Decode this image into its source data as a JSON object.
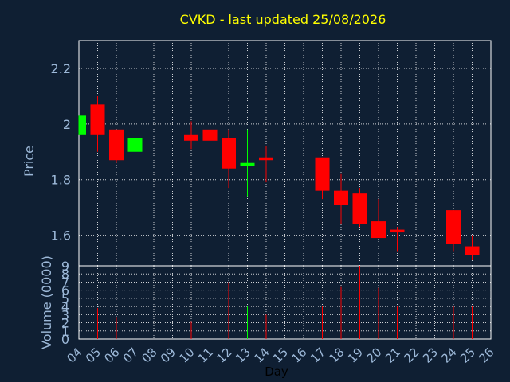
{
  "chart_data": {
    "type": "candlestick",
    "title": "CVKD - last updated 25/08/2026",
    "xlabel": "Day",
    "price_panel": {
      "ylabel": "Price",
      "ylim": [
        1.49,
        2.3
      ],
      "yticks": [
        "1.6",
        "1.8",
        "2",
        "2.2"
      ],
      "yticks_values": [
        1.6,
        1.8,
        2.0,
        2.2
      ]
    },
    "volume_panel": {
      "ylabel": "Volume (0000)",
      "ylim": [
        0,
        9
      ],
      "yticks": [
        "0",
        "1",
        "2",
        "3",
        "4",
        "5",
        "6",
        "7",
        "8",
        "9"
      ],
      "yticks_values": [
        0,
        1,
        2,
        3,
        4,
        5,
        6,
        7,
        8,
        9
      ]
    },
    "x_ticks": [
      "04",
      "05",
      "06",
      "07",
      "08",
      "09",
      "10",
      "11",
      "12",
      "13",
      "14",
      "15",
      "16",
      "17",
      "18",
      "19",
      "20",
      "21",
      "22",
      "23",
      "24",
      "25",
      "26"
    ],
    "x_range": [
      4,
      26
    ],
    "grid": true,
    "colors": {
      "up": "#00ff00",
      "down": "#ff0000",
      "background": "#0f1f33",
      "axis_text": "#9db9d9",
      "title": "#ffff00",
      "grid": "#ffffff"
    },
    "candles": [
      {
        "day": 4,
        "open": 1.96,
        "high": 2.03,
        "low": 1.96,
        "close": 2.03,
        "volume": 0
      },
      {
        "day": 5,
        "open": 2.07,
        "high": 2.1,
        "low": 1.9,
        "close": 1.96,
        "volume": 3.8
      },
      {
        "day": 6,
        "open": 1.98,
        "high": 1.98,
        "low": 1.86,
        "close": 1.87,
        "volume": 2.7
      },
      {
        "day": 7,
        "open": 1.9,
        "high": 2.05,
        "low": 1.87,
        "close": 1.95,
        "volume": 3.5
      },
      {
        "day": 10,
        "open": 1.96,
        "high": 2.01,
        "low": 1.91,
        "close": 1.94,
        "volume": 2.2
      },
      {
        "day": 11,
        "open": 1.98,
        "high": 2.12,
        "low": 1.94,
        "close": 1.94,
        "volume": 5.0
      },
      {
        "day": 12,
        "open": 1.95,
        "high": 1.98,
        "low": 1.77,
        "close": 1.84,
        "volume": 7.0
      },
      {
        "day": 13,
        "open": 1.85,
        "high": 1.98,
        "low": 1.74,
        "close": 1.86,
        "volume": 4.0
      },
      {
        "day": 14,
        "open": 1.88,
        "high": 1.92,
        "low": 1.79,
        "close": 1.87,
        "volume": 3.0
      },
      {
        "day": 17,
        "open": 1.88,
        "high": 1.88,
        "low": 1.73,
        "close": 1.76,
        "volume": 4.0
      },
      {
        "day": 18,
        "open": 1.76,
        "high": 1.82,
        "low": 1.64,
        "close": 1.71,
        "volume": 6.4
      },
      {
        "day": 19,
        "open": 1.75,
        "high": 1.77,
        "low": 1.63,
        "close": 1.64,
        "volume": 9.0
      },
      {
        "day": 20,
        "open": 1.65,
        "high": 1.73,
        "low": 1.59,
        "close": 1.59,
        "volume": 6.3
      },
      {
        "day": 21,
        "open": 1.62,
        "high": 1.63,
        "low": 1.54,
        "close": 1.61,
        "volume": 4.0
      },
      {
        "day": 24,
        "open": 1.69,
        "high": 1.69,
        "low": 1.54,
        "close": 1.57,
        "volume": 4.0
      },
      {
        "day": 25,
        "open": 1.56,
        "high": 1.6,
        "low": 1.51,
        "close": 1.53,
        "volume": 4.0
      }
    ]
  }
}
